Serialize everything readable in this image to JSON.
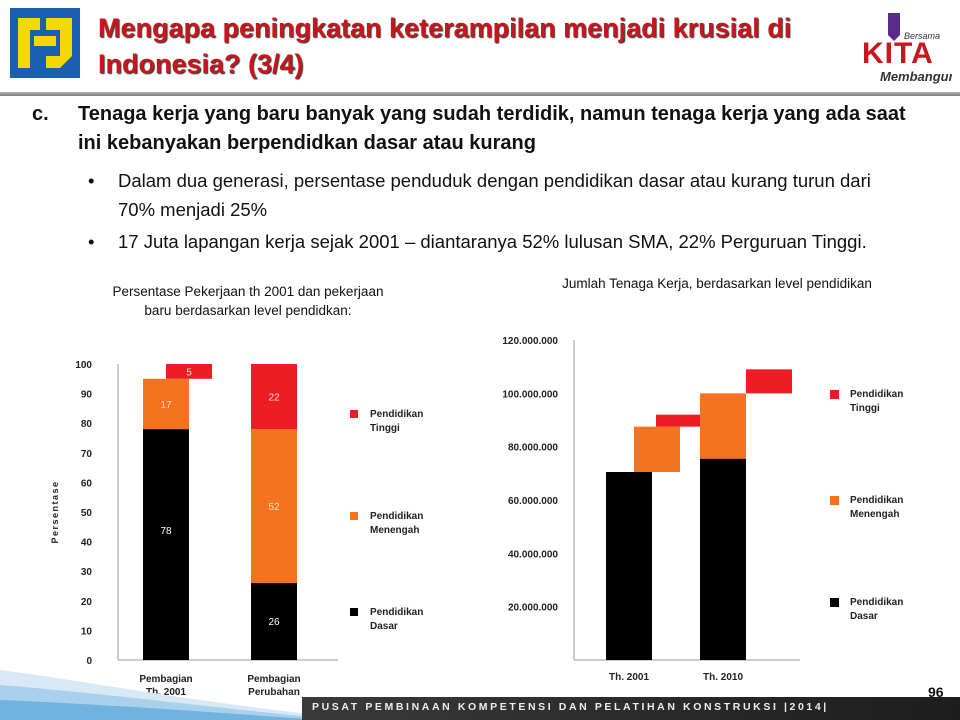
{
  "header": {
    "title": "Mengapa peningkatan keterampilan menjadi krusial di Indonesia? (3/4)",
    "logo_text": "KITA",
    "logo_top": "Bersama",
    "logo_bottom": "Membangun"
  },
  "content": {
    "point_letter": "c.",
    "point_text": "Tenaga kerja yang baru banyak yang sudah terdidik, namun tenaga kerja yang ada saat ini kebanyakan berpendidkan dasar atau kurang",
    "bullets": [
      "Dalam dua generasi, persentase penduduk dengan pendidikan dasar atau kurang turun dari 70% menjadi 25%",
      "17 Juta lapangan kerja sejak 2001 – diantaranya 52% lulusan SMA, 22% Perguruan Tinggi."
    ]
  },
  "colors": {
    "dasar": "#000000",
    "menengah": "#f47321",
    "tinggi": "#ee1c25",
    "title": "#c8161d"
  },
  "chart_data": [
    {
      "type": "bar",
      "title": "Persentase Pekerjaan th 2001 dan pekerjaan baru berdasarkan level pendidkan:",
      "ylabel": "Persentase",
      "ylim": [
        0,
        100
      ],
      "yticks": [
        "0",
        "10",
        "20",
        "30",
        "40",
        "50",
        "60",
        "70",
        "80",
        "90",
        "100"
      ],
      "categories": [
        "Pembagian Th. 2001",
        "Pembagian Perubahan"
      ],
      "series": [
        {
          "name": "Pendidikan Dasar",
          "values": [
            78,
            26
          ],
          "labels": [
            "78",
            "26"
          ]
        },
        {
          "name": "Pendidikan Menengah",
          "values": [
            17,
            52
          ],
          "labels": [
            "17",
            "52"
          ]
        },
        {
          "name": "Pendidikan Tinggi",
          "values": [
            5,
            22
          ],
          "labels": [
            "5",
            "22"
          ]
        }
      ],
      "legend": [
        "Pendidikan Tinggi",
        "Pendidikan Menengah",
        "Pendidikan Dasar"
      ]
    },
    {
      "type": "bar",
      "title": "Jumlah Tenaga Kerja, berdasarkan level pendidikan",
      "ylim": [
        0,
        120000000
      ],
      "yticks": [
        "20.000.000",
        "40.000.000",
        "60.000.000",
        "80.000.000",
        "100.000.000",
        "120.000.000"
      ],
      "categories": [
        "Th. 2001",
        "Th. 2010"
      ],
      "series": [
        {
          "name": "Pendidikan Dasar",
          "values": [
            70500000,
            75500000
          ]
        },
        {
          "name": "Pendidikan Menengah",
          "values": [
            17000000,
            24500000
          ]
        },
        {
          "name": "Pendidikan Tinggi",
          "values": [
            4500000,
            9000000
          ]
        }
      ],
      "legend": [
        "Pendidikan Tinggi",
        "Pendidikan Menengah",
        "Pendidikan Dasar"
      ]
    }
  ],
  "footer": {
    "text": "PUSAT PEMBINAAN KOMPETENSI DAN PELATIHAN KONSTRUKSI |2014|",
    "page_number": "96"
  }
}
